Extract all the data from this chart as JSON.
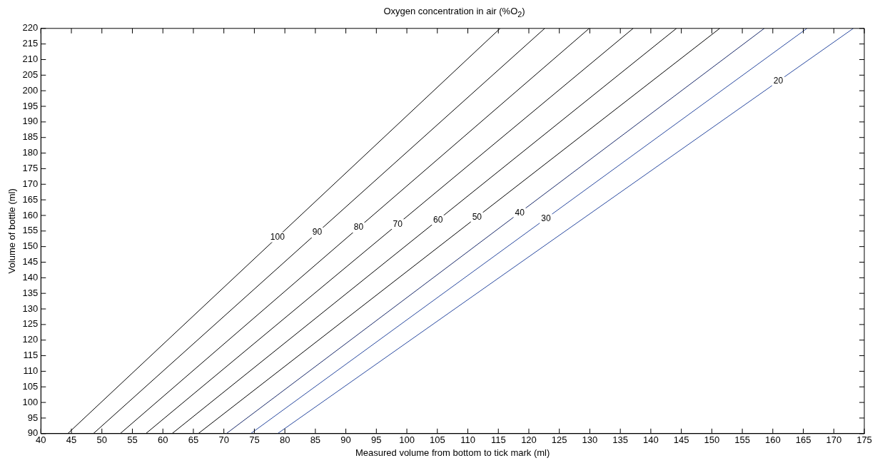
{
  "chart_data": {
    "type": "line",
    "title": "Oxygen concentration in air (%O$_{2}$)",
    "xlabel": "Measured volume from bottom to tick mark (ml)",
    "ylabel": "Volume of bottle (ml)",
    "series": [
      {
        "color": "#000000",
        "x": [
          44.4,
          115.3
        ],
        "values": [
          90,
          220
        ]
      },
      {
        "color": "#000000",
        "x": [
          48.6,
          122.6
        ],
        "values": [
          90,
          220
        ]
      },
      {
        "color": "#000000",
        "x": [
          53.0,
          129.9
        ],
        "values": [
          90,
          220
        ]
      },
      {
        "color": "#000000",
        "x": [
          57.2,
          137.1
        ],
        "values": [
          90,
          220
        ]
      },
      {
        "color": "#000000",
        "x": [
          61.5,
          144.2
        ],
        "values": [
          90,
          220
        ]
      },
      {
        "color": "#000000",
        "x": [
          65.8,
          151.3
        ],
        "values": [
          90,
          220
        ]
      },
      {
        "color": "#1a2a6a",
        "x": [
          70.4,
          158.6
        ],
        "values": [
          90,
          220
        ]
      },
      {
        "color": "#2a4aa0",
        "x": [
          74.4,
          165.6
        ],
        "values": [
          90,
          220
        ]
      },
      {
        "color": "#2a4aa0",
        "x": [
          78.8,
          173.2
        ],
        "values": [
          90,
          220
        ]
      }
    ],
    "annotations": [
      {
        "text": "100",
        "x": 78.8,
        "y": 153
      },
      {
        "text": "90",
        "x": 85.3,
        "y": 154.5
      },
      {
        "text": "80",
        "x": 92.1,
        "y": 156.1
      },
      {
        "text": "70",
        "x": 98.5,
        "y": 157.2
      },
      {
        "text": "60",
        "x": 105.1,
        "y": 158.5
      },
      {
        "text": "50",
        "x": 111.5,
        "y": 159.4
      },
      {
        "text": "40",
        "x": 118.5,
        "y": 160.8
      },
      {
        "text": "30",
        "x": 122.8,
        "y": 159
      },
      {
        "text": "20",
        "x": 160.9,
        "y": 203
      }
    ],
    "xlim": [
      40,
      175
    ],
    "ylim": [
      90,
      220
    ],
    "xticks": [
      40,
      45,
      50,
      55,
      60,
      65,
      70,
      75,
      80,
      85,
      90,
      95,
      100,
      105,
      110,
      115,
      120,
      125,
      130,
      135,
      140,
      145,
      150,
      155,
      160,
      165,
      170,
      175
    ],
    "yticks": [
      90,
      95,
      100,
      105,
      110,
      115,
      120,
      125,
      130,
      135,
      140,
      145,
      150,
      155,
      160,
      165,
      170,
      175,
      180,
      185,
      190,
      195,
      200,
      205,
      210,
      215,
      220
    ],
    "marker": "none",
    "line_style": "solid",
    "legend": false
  }
}
